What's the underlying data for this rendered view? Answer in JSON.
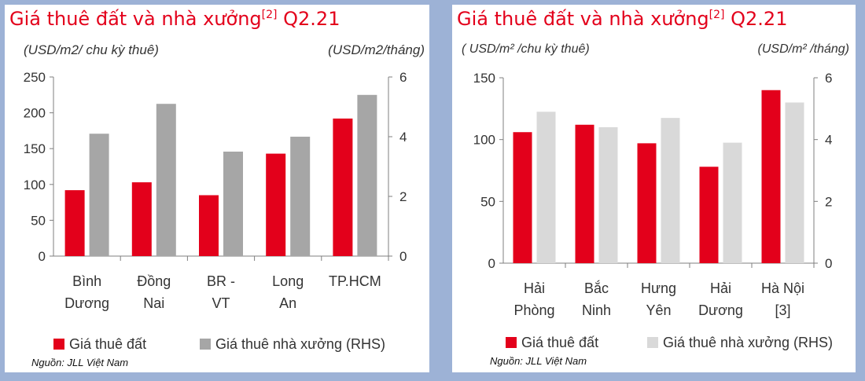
{
  "chart_data": [
    {
      "type": "bar",
      "title": "Giá thuê đất và nhà xưởng",
      "title_sup": "[2]",
      "title_suffix": " Q2.21",
      "ylabel": "(USD/m2/ chu kỳ thuê)",
      "y2label": "(USD/m2/tháng)",
      "categories": [
        [
          "Bình",
          "Dương"
        ],
        [
          "Đồng",
          "Nai"
        ],
        [
          "BR -",
          "VT"
        ],
        [
          "Long",
          "An"
        ],
        [
          "TP.HCM"
        ]
      ],
      "ylim": [
        0,
        250
      ],
      "y2lim": [
        0,
        6
      ],
      "yticks": [
        "0",
        "50",
        "100",
        "150",
        "200",
        "250"
      ],
      "y2ticks": [
        "0",
        "2",
        "4",
        "6"
      ],
      "series": [
        {
          "name": "Giá thuê đất",
          "axis": "left",
          "color": "#e3001b",
          "values": [
            92,
            103,
            85,
            143,
            192
          ]
        },
        {
          "name": "Giá thuê nhà xưởng (RHS)",
          "axis": "right",
          "color": "#a6a6a6",
          "values": [
            4.1,
            5.1,
            3.5,
            4.0,
            5.4
          ]
        }
      ],
      "source": "Nguồn: JLL Việt Nam"
    },
    {
      "type": "bar",
      "title": "Giá thuê đất và nhà xưởng",
      "title_sup": "[2]",
      "title_suffix": " Q2.21",
      "ylabel": "( USD/m² /chu kỳ thuê)",
      "y2label": "(USD/m² /tháng)",
      "categories": [
        [
          "Hải",
          "Phòng"
        ],
        [
          "Bắc",
          "Ninh"
        ],
        [
          "Hưng",
          "Yên"
        ],
        [
          "Hải",
          "Dương"
        ],
        [
          "Hà Nội",
          "[3]"
        ]
      ],
      "ylim": [
        0,
        150
      ],
      "y2lim": [
        0,
        6
      ],
      "yticks": [
        "0",
        "50",
        "100",
        "150"
      ],
      "y2ticks": [
        "0",
        "2",
        "4",
        "6"
      ],
      "series": [
        {
          "name": "Giá thuê đất",
          "axis": "left",
          "color": "#e3001b",
          "values": [
            106,
            112,
            97,
            78,
            140
          ]
        },
        {
          "name": "Giá thuê nhà xưởng (RHS)",
          "axis": "right",
          "color": "#d9d9d9",
          "values": [
            4.9,
            4.4,
            4.7,
            3.9,
            5.2
          ]
        }
      ],
      "source": "Nguồn: JLL Việt Nam"
    }
  ]
}
